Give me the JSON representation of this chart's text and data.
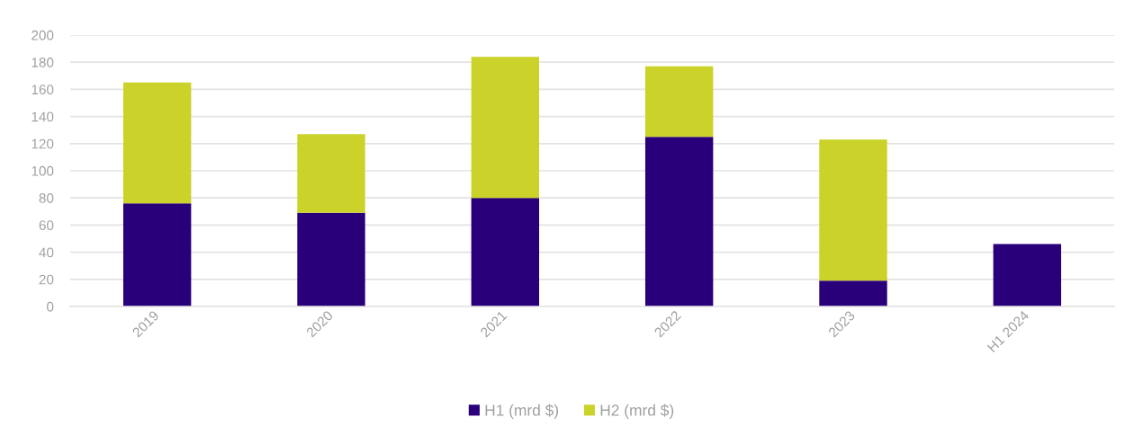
{
  "chart_data": {
    "type": "bar",
    "stacked": true,
    "categories": [
      "2019",
      "2020",
      "2021",
      "2022",
      "2023",
      "H1 2024"
    ],
    "series": [
      {
        "name": "H1 (mrd $)",
        "color": "#29007a",
        "values": [
          76,
          69,
          80,
          125,
          19,
          46
        ]
      },
      {
        "name": "H2 (mrd $)",
        "color": "#cbd32a",
        "values": [
          89,
          58,
          104,
          52,
          104,
          null
        ]
      }
    ],
    "ylim": [
      0,
      200
    ],
    "yticks": [
      0,
      20,
      40,
      60,
      80,
      100,
      120,
      140,
      160,
      180,
      200
    ],
    "grid": "y",
    "legend": "bottom"
  }
}
